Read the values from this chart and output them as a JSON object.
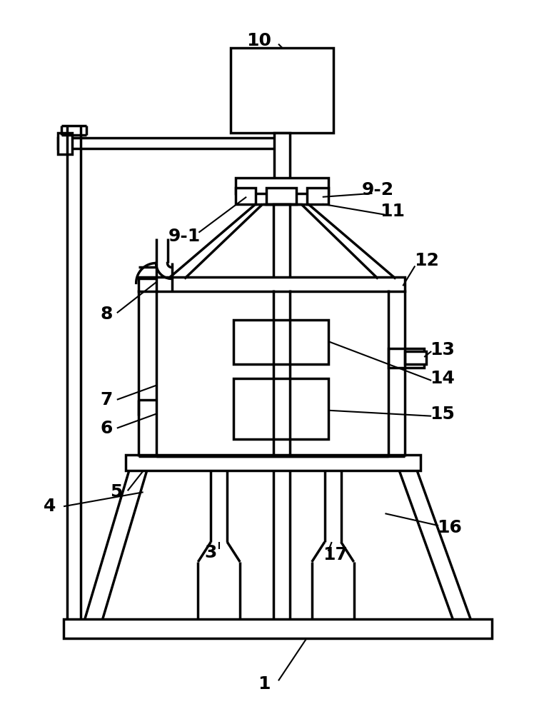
{
  "bg_color": "#ffffff",
  "lc": "#000000",
  "lw": 2.5,
  "lw_thin": 1.5,
  "fs": 18
}
